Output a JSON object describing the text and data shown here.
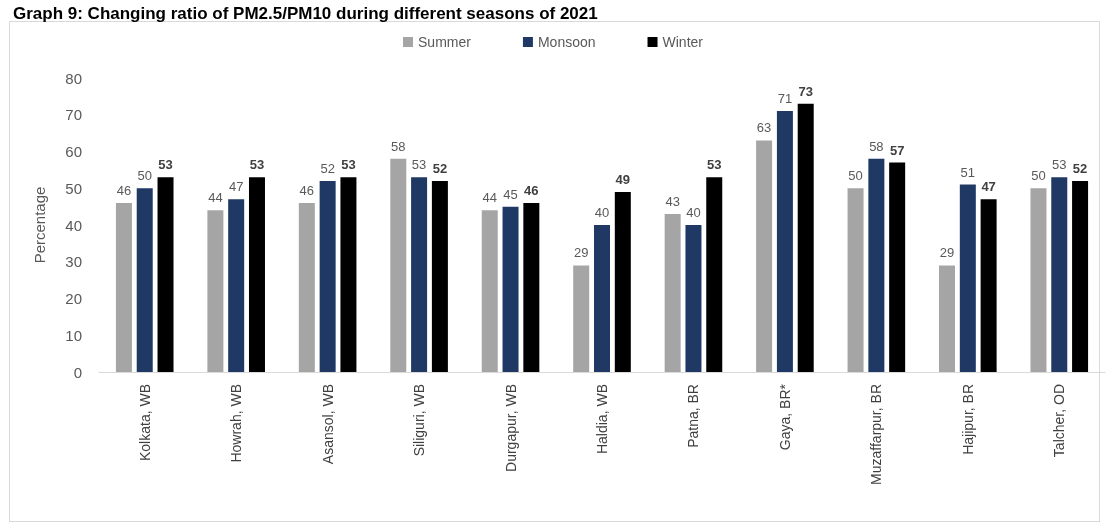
{
  "chart_data": {
    "type": "bar",
    "title": "Graph 9: Changing ratio of PM2.5/PM10 during different seasons of 2021",
    "ylabel": "Percentage",
    "categories": [
      "Kolkata, WB",
      "Howrah, WB",
      "Asansol, WB",
      "Siliguri, WB",
      "Durgapur, WB",
      "Haldia, WB",
      "Patna, BR",
      "Gaya, BR*",
      "Muzaffarpur, BR",
      "Hajipur, BR",
      "Talcher, OD"
    ],
    "series": [
      {
        "name": "Summer",
        "color": "#a5a5a5",
        "values": [
          46,
          44,
          46,
          58,
          44,
          29,
          43,
          63,
          50,
          29,
          50
        ]
      },
      {
        "name": "Monsoon",
        "color": "#1f3864",
        "values": [
          50,
          47,
          52,
          53,
          45,
          40,
          40,
          71,
          58,
          51,
          53
        ]
      },
      {
        "name": "Winter",
        "color": "#000000",
        "values": [
          53,
          53,
          53,
          52,
          46,
          49,
          53,
          73,
          57,
          47,
          52
        ]
      }
    ],
    "ylim": [
      0,
      80
    ],
    "yticks": [
      0,
      10,
      20,
      30,
      40,
      50,
      60,
      70,
      80
    ],
    "legend": "top",
    "data_labels": true
  }
}
